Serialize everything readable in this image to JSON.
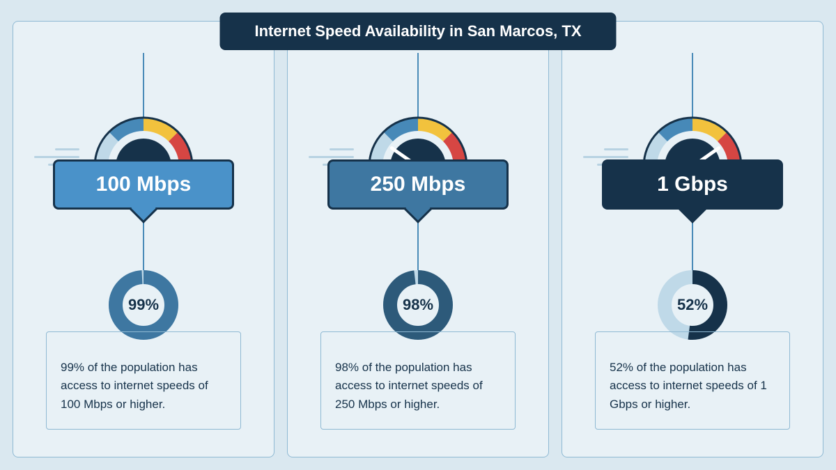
{
  "title": "Internet Speed Availability in San Marcos, TX",
  "background_color": "#dae8f0",
  "panel_bg": "#e8f1f6",
  "panel_border": "#8fb9d3",
  "title_bg": "#16324a",
  "title_fg": "#ffffff",
  "connector_color": "#4a8bb8",
  "gauge": {
    "segments": [
      {
        "color": "#bfd9e8"
      },
      {
        "color": "#4789b8"
      },
      {
        "color": "#f2c23d"
      },
      {
        "color": "#d64643"
      }
    ],
    "inner_stroke": "#16324a",
    "hub_fill": "#16324a"
  },
  "cards": [
    {
      "speed": "100 Mbps",
      "badge_bg": "#4a92c9",
      "badge_fg": "#ffffff",
      "needle_angle": -100,
      "percent": 99,
      "donut_fg": "#3e77a1",
      "donut_bg": "#bfd9e8",
      "desc": "99% of the population has access to internet speeds of 100 Mbps or higher."
    },
    {
      "speed": "250 Mbps",
      "badge_bg": "#3e77a1",
      "badge_fg": "#ffffff",
      "needle_angle": -55,
      "percent": 98,
      "donut_fg": "#2d5a7a",
      "donut_bg": "#bfd9e8",
      "desc": "98% of the population has access to internet speeds of 250 Mbps or higher."
    },
    {
      "speed": "1 Gbps",
      "badge_bg": "#16324a",
      "badge_fg": "#ffffff",
      "needle_angle": 55,
      "percent": 52,
      "donut_fg": "#16324a",
      "donut_bg": "#bfd9e8",
      "desc": "52% of the population has access to internet speeds of 1 Gbps or higher."
    }
  ]
}
